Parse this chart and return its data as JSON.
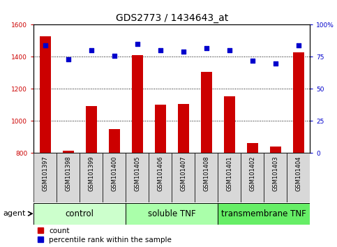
{
  "title": "GDS2773 / 1434643_at",
  "samples": [
    "GSM101397",
    "GSM101398",
    "GSM101399",
    "GSM101400",
    "GSM101405",
    "GSM101406",
    "GSM101407",
    "GSM101408",
    "GSM101401",
    "GSM101402",
    "GSM101403",
    "GSM101404"
  ],
  "counts": [
    1530,
    815,
    1095,
    950,
    1410,
    1100,
    1105,
    1305,
    1155,
    865,
    840,
    1430
  ],
  "percentiles": [
    84,
    73,
    80,
    76,
    85,
    80,
    79,
    82,
    80,
    72,
    70,
    84
  ],
  "groups": [
    {
      "label": "control",
      "start": 0,
      "end": 4
    },
    {
      "label": "soluble TNF",
      "start": 4,
      "end": 8
    },
    {
      "label": "transmembrane TNF",
      "start": 8,
      "end": 12
    }
  ],
  "group_colors": [
    "#ccffcc",
    "#aaffaa",
    "#66ee66"
  ],
  "ylim_left": [
    800,
    1600
  ],
  "ylim_right": [
    0,
    100
  ],
  "yticks_left": [
    800,
    1000,
    1200,
    1400,
    1600
  ],
  "yticks_right": [
    0,
    25,
    50,
    75,
    100
  ],
  "ytick_labels_right": [
    "0",
    "25",
    "50",
    "75",
    "100%"
  ],
  "bar_color": "#cc0000",
  "dot_color": "#0000cc",
  "plot_bg": "#ffffff",
  "xtick_bg": "#d8d8d8",
  "grid_color": "#000000",
  "title_fontsize": 10,
  "tick_fontsize": 6.5,
  "xtick_fontsize": 6,
  "legend_fontsize": 7.5,
  "group_label_fontsize": 8.5,
  "agent_label": "agent"
}
